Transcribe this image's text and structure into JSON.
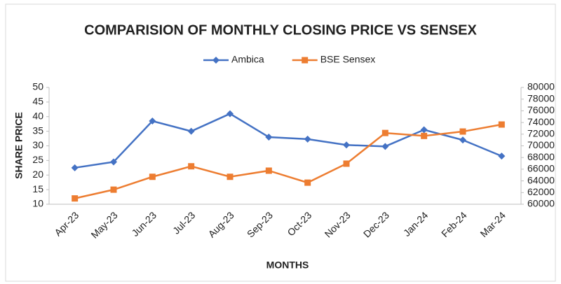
{
  "chart_data": {
    "type": "line",
    "title": "COMPARISION OF MONTHLY CLOSING PRICE VS SENSEX",
    "x_label": "MONTHS",
    "y_label": "SHARE PRICE",
    "categories": [
      "Apr-23",
      "May-23",
      "Jun-23",
      "Jul-23",
      "Aug-23",
      "Sep-23",
      "Oct-23",
      "Nov-23",
      "Dec-23",
      "Jan-24",
      "Feb-24",
      "Mar-24"
    ],
    "series": [
      {
        "name": "Ambica",
        "color": "#4472c4",
        "marker": "diamond",
        "values": [
          22.5,
          24.5,
          38.5,
          35,
          41,
          33,
          32.3,
          30.3,
          29.8,
          35.5,
          32,
          26.5
        ]
      },
      {
        "name": "BSE Sensex",
        "color": "#ed7d31",
        "marker": "square",
        "axis": "y2",
        "values": [
          61000,
          62500,
          64700,
          66500,
          64700,
          65750,
          63700,
          66950,
          72200,
          71700,
          72450,
          73650
        ]
      }
    ],
    "ylim": [
      10,
      50
    ],
    "yticks": [
      10,
      15,
      20,
      25,
      30,
      35,
      40,
      45,
      50
    ],
    "y2lim": [
      60000,
      80000
    ],
    "y2ticks": [
      60000,
      62000,
      64000,
      66000,
      68000,
      70000,
      72000,
      74000,
      76000,
      78000,
      80000
    ],
    "grid": false,
    "legend": "top"
  }
}
